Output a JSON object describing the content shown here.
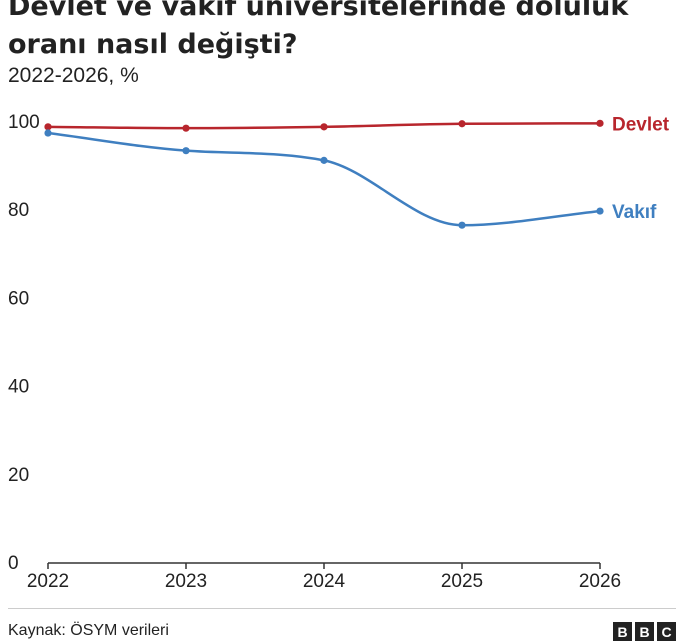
{
  "chart_data": {
    "type": "line",
    "title": "Devlet ve vakıf üniversitelerinde doluluk oranı nasıl değişti?",
    "subtitle": "2022-2026, %",
    "xlabel": "",
    "ylabel": "",
    "x": [
      "2022",
      "2023",
      "2024",
      "2025",
      "2026"
    ],
    "ylim": [
      0,
      100
    ],
    "yticks": [
      0,
      20,
      40,
      60,
      80,
      100
    ],
    "grid": false,
    "series": [
      {
        "name": "Devlet",
        "color": "#b8262d",
        "values": [
          98.9,
          98.6,
          98.9,
          99.6,
          99.7
        ]
      },
      {
        "name": "Vakıf",
        "color": "#3f7fc0",
        "values": [
          97.5,
          93.5,
          91.3,
          76.6,
          79.8
        ]
      }
    ]
  },
  "source": "Kaynak: ÖSYM verileri",
  "logo": [
    "B",
    "B",
    "C"
  ]
}
